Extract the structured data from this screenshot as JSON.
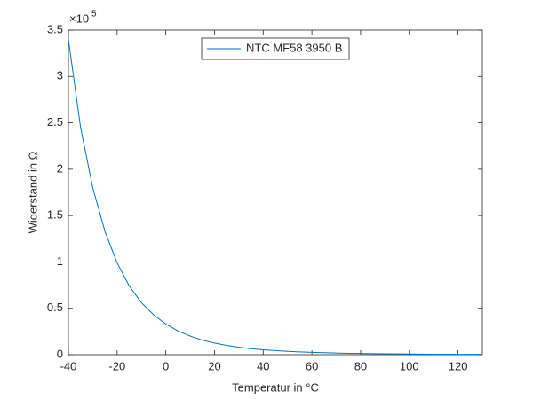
{
  "chart_data": {
    "type": "line",
    "xlabel": "Temperatur in °C",
    "ylabel": "Widerstand in Ω",
    "y_multiplier": "×10",
    "y_multiplier_exponent": "5",
    "x": [
      -40,
      -35,
      -30,
      -25,
      -20,
      -15,
      -10,
      -5,
      0,
      5,
      10,
      15,
      20,
      25,
      30,
      35,
      40,
      45,
      50,
      55,
      60,
      65,
      70,
      75,
      80,
      85,
      90,
      95,
      100,
      105,
      110,
      115,
      120,
      125,
      130
    ],
    "series": [
      {
        "name": "NTC MF58 3950 B",
        "color": "#0072bd",
        "values": [
          340000,
          245000,
          180000,
          133000,
          99000,
          74000,
          56000,
          43000,
          33000,
          25500,
          20000,
          15700,
          12500,
          10000,
          8000,
          6500,
          5300,
          4400,
          3600,
          3000,
          2500,
          2100,
          1750,
          1480,
          1260,
          1080,
          920,
          800,
          690,
          600,
          520,
          460,
          400,
          350,
          310
        ]
      }
    ],
    "xlim": [
      -40,
      130
    ],
    "xticks": [
      -40,
      -20,
      0,
      20,
      40,
      60,
      80,
      100,
      120
    ],
    "ylim": [
      0,
      350000
    ],
    "yticks": [
      0,
      {
        "value": 50000,
        "label": "0.5"
      },
      {
        "value": 100000,
        "label": "1"
      },
      {
        "value": 150000,
        "label": "1.5"
      },
      {
        "value": 200000,
        "label": "2"
      },
      {
        "value": 250000,
        "label": "2.5"
      },
      {
        "value": 300000,
        "label": "3"
      },
      {
        "value": 350000,
        "label": "3.5"
      }
    ],
    "grid": false,
    "legend": "north"
  }
}
